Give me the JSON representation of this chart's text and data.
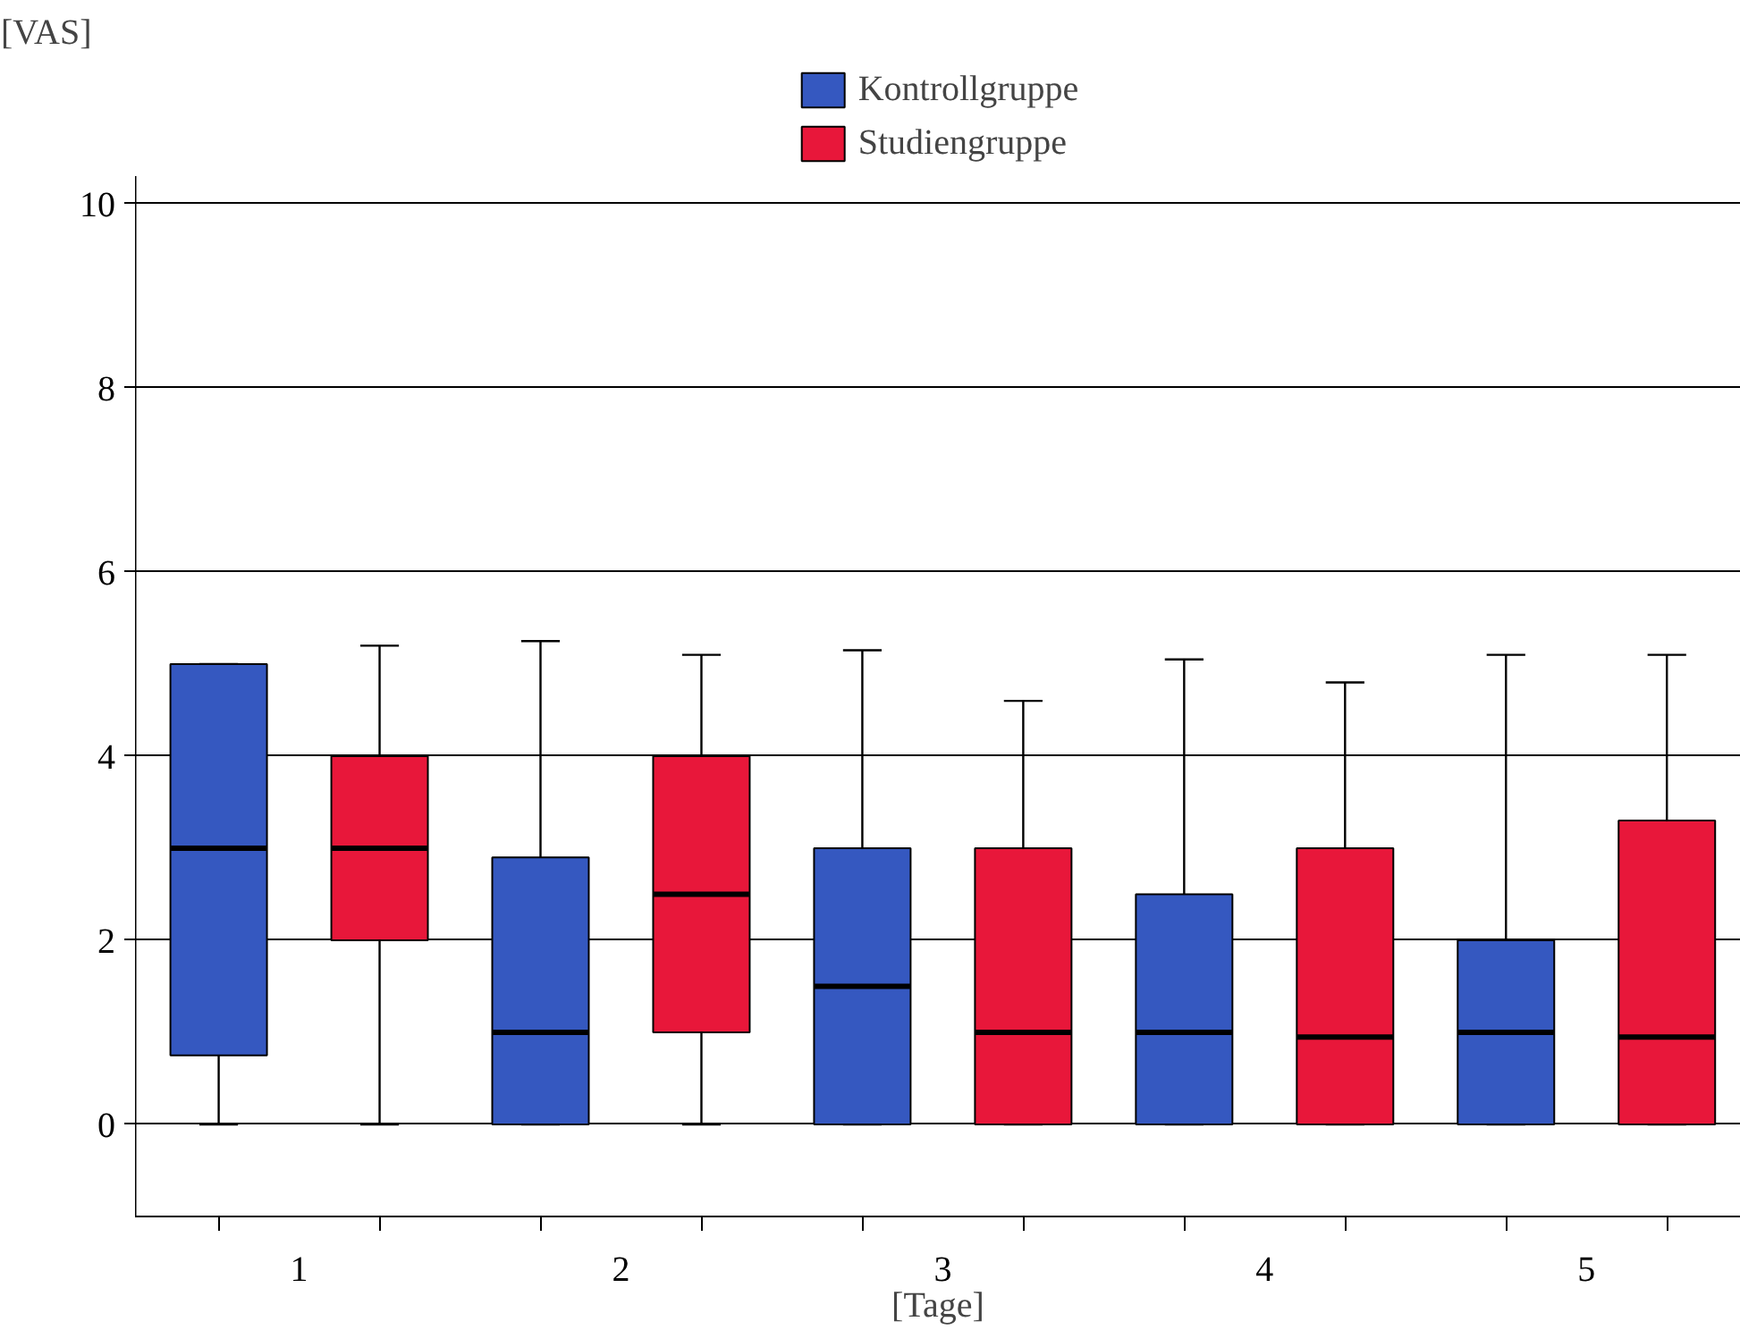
{
  "chart_data": {
    "type": "box",
    "xlabel": "[Tage]",
    "ylabel": "[VAS]",
    "categories": [
      "1",
      "2",
      "3",
      "4",
      "5"
    ],
    "ylim": [
      -1,
      10.3
    ],
    "yticks": [
      0,
      2,
      4,
      6,
      8,
      10
    ],
    "grid": "y",
    "legend": "top",
    "series": [
      {
        "name": "Kontrollgruppe",
        "color": "#3558c0",
        "boxes": [
          {
            "low": 0,
            "q1": 0.75,
            "median": 3,
            "q3": 5,
            "high": 5
          },
          {
            "low": 0,
            "q1": 0,
            "median": 1,
            "q3": 2.9,
            "high": 5.25
          },
          {
            "low": 0,
            "q1": 0,
            "median": 1.5,
            "q3": 3,
            "high": 5.15
          },
          {
            "low": 0,
            "q1": 0,
            "median": 1,
            "q3": 2.5,
            "high": 5.05
          },
          {
            "low": 0,
            "q1": 0,
            "median": 1,
            "q3": 2,
            "high": 5.1
          }
        ]
      },
      {
        "name": "Studiengruppe",
        "color": "#e8173a",
        "boxes": [
          {
            "low": 0,
            "q1": 2,
            "median": 3,
            "q3": 4,
            "high": 5.2
          },
          {
            "low": 0,
            "q1": 1,
            "median": 2.5,
            "q3": 4,
            "high": 5.1
          },
          {
            "low": 0,
            "q1": 0,
            "median": 1,
            "q3": 3,
            "high": 4.6
          },
          {
            "low": 0,
            "q1": 0,
            "median": 0.95,
            "q3": 3,
            "high": 4.8
          },
          {
            "low": 0,
            "q1": 0,
            "median": 0.95,
            "q3": 3.3,
            "high": 5.1
          }
        ]
      }
    ]
  }
}
